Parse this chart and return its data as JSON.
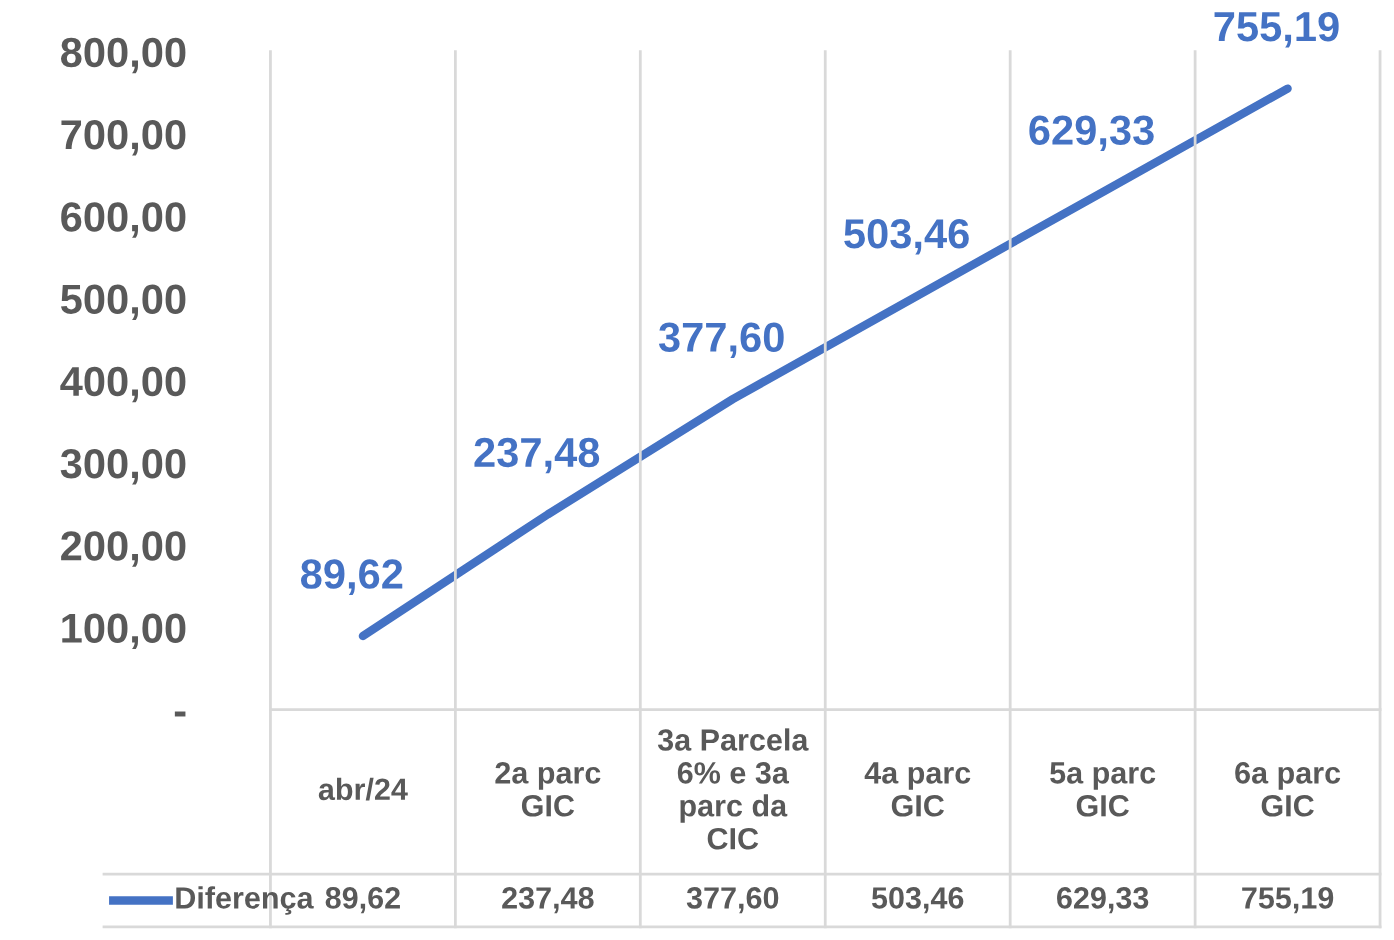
{
  "chart_data": {
    "type": "line",
    "categories": [
      "abr/24",
      "2a parc GIC",
      "3a Parcela 6% e 3a parc da CIC",
      "4a parc GIC",
      "5a parc GIC",
      "6a parc GIC"
    ],
    "series": [
      {
        "name": "Diferença",
        "color": "#4472c4",
        "values": [
          89.62,
          237.48,
          377.6,
          503.46,
          629.33,
          755.19
        ],
        "value_labels": [
          "89,62",
          "237,48",
          "377,60",
          "503,46",
          "629,33",
          "755,19"
        ]
      }
    ],
    "ylim": [
      0,
      800
    ],
    "yticks": [
      {
        "value": 0,
        "label": "-"
      },
      {
        "value": 100,
        "label": "100,00"
      },
      {
        "value": 200,
        "label": "200,00"
      },
      {
        "value": 300,
        "label": "300,00"
      },
      {
        "value": 400,
        "label": "400,00"
      },
      {
        "value": 500,
        "label": "500,00"
      },
      {
        "value": 600,
        "label": "600,00"
      },
      {
        "value": 700,
        "label": "700,00"
      },
      {
        "value": 800,
        "label": "800,00"
      }
    ],
    "grid": false,
    "legend": "bottom left",
    "marker": "none",
    "line_style": "solid"
  }
}
